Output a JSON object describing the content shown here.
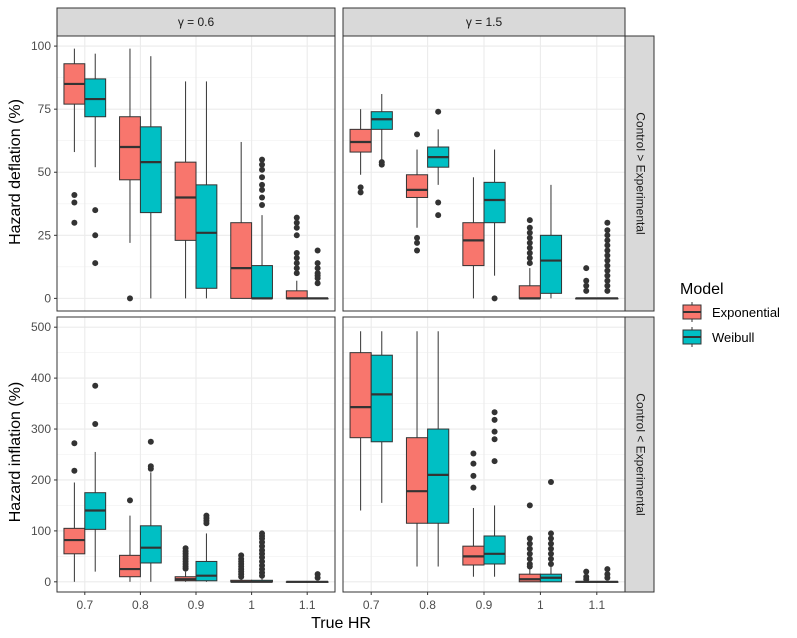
{
  "figure": {
    "ylabel_top": "Hazard deflation (%)",
    "ylabel_bottom": "Hazard inflation (%)",
    "xlabel": "True HR"
  },
  "legend": {
    "title": "Model",
    "items": [
      {
        "name": "Exponential",
        "color": "#F8766D"
      },
      {
        "name": "Weibull",
        "color": "#00BFC4"
      }
    ]
  },
  "chart_data": {
    "type": "boxplot",
    "categories": [
      "0.7",
      "0.8",
      "0.9",
      "1",
      "1.1"
    ],
    "columns": [
      "γ = 0.6",
      "γ = 1.5"
    ],
    "rows": [
      "Control > Experimental",
      "Control < Experimental"
    ],
    "series_names": [
      "Exponential",
      "Weibull"
    ],
    "row_ranges": [
      [
        -5,
        104
      ],
      [
        -20,
        520
      ]
    ],
    "row_ticks": [
      [
        0,
        25,
        50,
        75,
        100
      ],
      [
        0,
        100,
        200,
        300,
        400,
        500
      ]
    ],
    "panels": [
      {
        "row": 0,
        "col": 0,
        "boxes": [
          [
            {
              "min": 58,
              "q1": 77,
              "median": 85,
              "q3": 93,
              "max": 99,
              "outliers": [
                41,
                38,
                30
              ]
            },
            {
              "min": 52,
              "q1": 72,
              "median": 79,
              "q3": 87,
              "max": 97,
              "outliers": [
                35,
                25,
                14
              ]
            }
          ],
          [
            {
              "min": 22,
              "q1": 47,
              "median": 60,
              "q3": 72,
              "max": 99,
              "outliers": [
                0
              ]
            },
            {
              "min": 0,
              "q1": 34,
              "median": 54,
              "q3": 68,
              "max": 96,
              "outliers": []
            }
          ],
          [
            {
              "min": 0,
              "q1": 23,
              "median": 40,
              "q3": 54,
              "max": 86,
              "outliers": []
            },
            {
              "min": 0,
              "q1": 4,
              "median": 26,
              "q3": 45,
              "max": 86,
              "outliers": []
            }
          ],
          [
            {
              "min": 0,
              "q1": 0,
              "median": 12,
              "q3": 30,
              "max": 62,
              "outliers": []
            },
            {
              "min": 0,
              "q1": 0,
              "median": 0,
              "q3": 13,
              "max": 33,
              "outliers": [
                55,
                53,
                51,
                48,
                45,
                43,
                40,
                37
              ]
            }
          ],
          [
            {
              "min": 0,
              "q1": 0,
              "median": 0,
              "q3": 3,
              "max": 7,
              "outliers": [
                32,
                30,
                28,
                25,
                18,
                16,
                14,
                12,
                10
              ]
            },
            {
              "min": 0,
              "q1": 0,
              "median": 0,
              "q3": 0,
              "max": 0,
              "outliers": [
                19,
                14,
                12,
                10,
                9,
                8,
                6
              ]
            }
          ]
        ]
      },
      {
        "row": 0,
        "col": 1,
        "boxes": [
          [
            {
              "min": 49,
              "q1": 58,
              "median": 62,
              "q3": 67,
              "max": 75,
              "outliers": [
                44,
                42
              ]
            },
            {
              "min": 54,
              "q1": 67,
              "median": 71,
              "q3": 74,
              "max": 81,
              "outliers": [
                53,
                54
              ]
            }
          ],
          [
            {
              "min": 28,
              "q1": 40,
              "median": 43,
              "q3": 49,
              "max": 59,
              "outliers": [
                65,
                24,
                22,
                19
              ]
            },
            {
              "min": 45,
              "q1": 52,
              "median": 56,
              "q3": 60,
              "max": 67,
              "outliers": [
                74,
                38,
                33
              ]
            }
          ],
          [
            {
              "min": 0,
              "q1": 13,
              "median": 23,
              "q3": 30,
              "max": 48,
              "outliers": []
            },
            {
              "min": 9,
              "q1": 30,
              "median": 39,
              "q3": 46,
              "max": 59,
              "outliers": [
                0
              ]
            }
          ],
          [
            {
              "min": 0,
              "q1": 0,
              "median": 0,
              "q3": 5,
              "max": 12,
              "outliers": [
                31,
                28,
                26,
                24,
                22,
                20,
                18,
                16,
                14
              ]
            },
            {
              "min": 0,
              "q1": 2,
              "median": 15,
              "q3": 25,
              "max": 45,
              "outliers": []
            }
          ],
          [
            {
              "min": 0,
              "q1": 0,
              "median": 0,
              "q3": 0,
              "max": 0,
              "outliers": [
                12,
                7,
                5,
                3
              ]
            },
            {
              "min": 0,
              "q1": 0,
              "median": 0,
              "q3": 0,
              "max": 0,
              "outliers": [
                30,
                27,
                25,
                23,
                21,
                19,
                17,
                15,
                13,
                11,
                9,
                7,
                5,
                3
              ]
            }
          ]
        ]
      },
      {
        "row": 1,
        "col": 0,
        "boxes": [
          [
            {
              "min": 0,
              "q1": 55,
              "median": 82,
              "q3": 105,
              "max": 195,
              "outliers": [
                272,
                218
              ]
            },
            {
              "min": 20,
              "q1": 103,
              "median": 140,
              "q3": 175,
              "max": 255,
              "outliers": [
                385,
                310
              ]
            }
          ],
          [
            {
              "min": 0,
              "q1": 10,
              "median": 25,
              "q3": 52,
              "max": 130,
              "outliers": [
                160
              ]
            },
            {
              "min": 0,
              "q1": 37,
              "median": 67,
              "q3": 110,
              "max": 215,
              "outliers": [
                275,
                227,
                222
              ]
            }
          ],
          [
            {
              "min": 0,
              "q1": 2,
              "median": 5,
              "q3": 10,
              "max": 20,
              "outliers": [
                66,
                60,
                55,
                50,
                45,
                40,
                35,
                30,
                26
              ]
            },
            {
              "min": 0,
              "q1": 2,
              "median": 12,
              "q3": 40,
              "max": 95,
              "outliers": [
                130,
                125,
                120,
                115
              ]
            }
          ],
          [
            {
              "min": 0,
              "q1": 0,
              "median": 0,
              "q3": 3,
              "max": 6,
              "outliers": [
                52,
                45,
                40,
                35,
                30,
                25,
                20,
                15,
                10
              ]
            },
            {
              "min": 0,
              "q1": 0,
              "median": 0,
              "q3": 3,
              "max": 8,
              "outliers": [
                95,
                90,
                85,
                78,
                70,
                62,
                55,
                48,
                40,
                32,
                25,
                18,
                12
              ]
            }
          ],
          [
            {
              "min": 0,
              "q1": 0,
              "median": 0,
              "q3": 0,
              "max": 0,
              "outliers": []
            },
            {
              "min": 0,
              "q1": 0,
              "median": 0,
              "q3": 0,
              "max": 0,
              "outliers": [
                15,
                8
              ]
            }
          ]
        ]
      },
      {
        "row": 1,
        "col": 1,
        "boxes": [
          [
            {
              "min": 140,
              "q1": 283,
              "median": 343,
              "q3": 450,
              "max": 492,
              "outliers": []
            },
            {
              "min": 155,
              "q1": 275,
              "median": 368,
              "q3": 445,
              "max": 492,
              "outliers": []
            }
          ],
          [
            {
              "min": 30,
              "q1": 115,
              "median": 178,
              "q3": 283,
              "max": 492,
              "outliers": []
            },
            {
              "min": 30,
              "q1": 115,
              "median": 210,
              "q3": 300,
              "max": 492,
              "outliers": []
            }
          ],
          [
            {
              "min": 10,
              "q1": 33,
              "median": 50,
              "q3": 70,
              "max": 145,
              "outliers": [
                252,
                232,
                208,
                185
              ]
            },
            {
              "min": 10,
              "q1": 35,
              "median": 55,
              "q3": 90,
              "max": 150,
              "outliers": [
                333,
                318,
                295,
                280,
                237
              ]
            }
          ],
          [
            {
              "min": 0,
              "q1": 0,
              "median": 5,
              "q3": 15,
              "max": 25,
              "outliers": [
                150,
                85,
                75,
                65,
                55,
                45,
                35,
                30
              ]
            },
            {
              "min": 0,
              "q1": 0,
              "median": 8,
              "q3": 15,
              "max": 30,
              "outliers": [
                196,
                95,
                85,
                75,
                65,
                55,
                45,
                35
              ]
            }
          ],
          [
            {
              "min": 0,
              "q1": 0,
              "median": 0,
              "q3": 0,
              "max": 0,
              "outliers": [
                20,
                10,
                5
              ]
            },
            {
              "min": 0,
              "q1": 0,
              "median": 0,
              "q3": 0,
              "max": 0,
              "outliers": [
                25,
                15,
                8
              ]
            }
          ]
        ]
      }
    ]
  }
}
